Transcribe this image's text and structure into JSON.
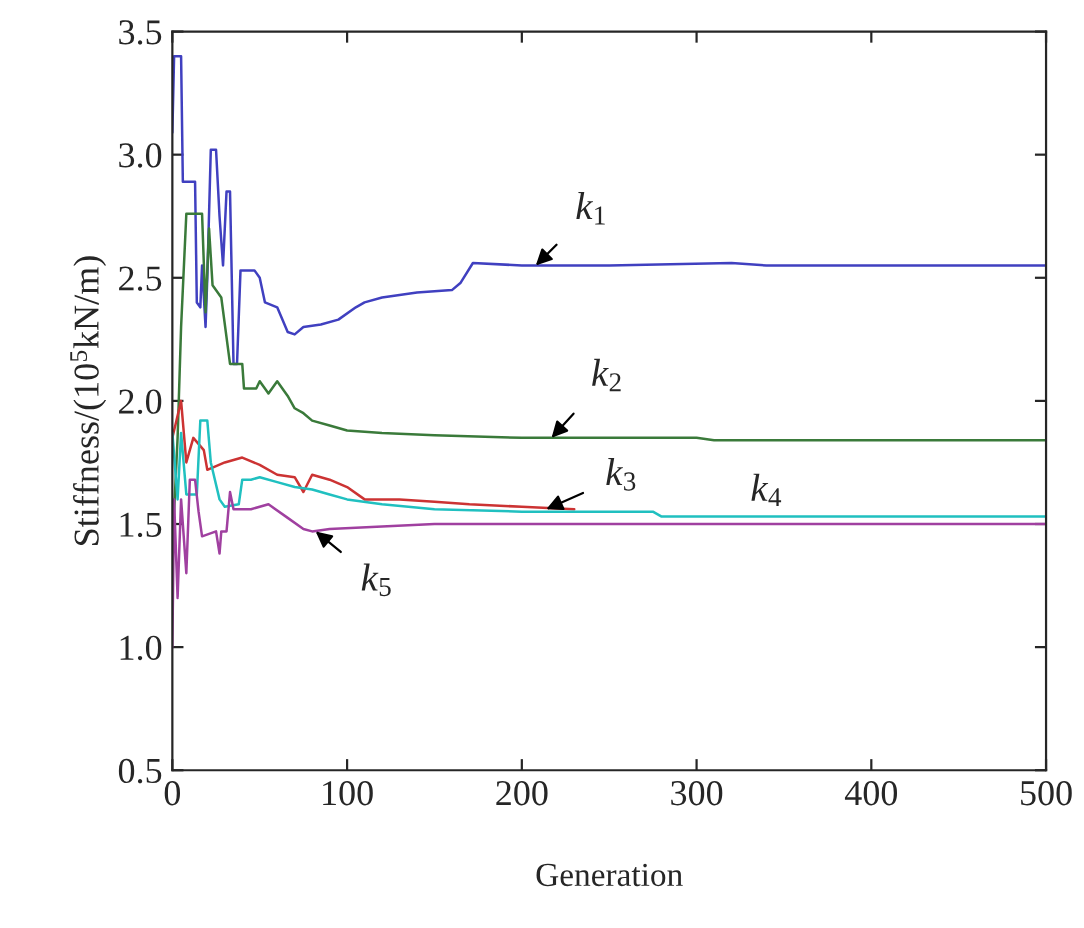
{
  "chart_data": {
    "type": "line",
    "xlabel": "Generation",
    "ylabel": "Stiffness/(10$^{5}$kN/m)",
    "xlim": [
      0,
      500
    ],
    "xticks": [
      0,
      100,
      200,
      300,
      400,
      500
    ],
    "ylim": [
      0.5,
      3.5
    ],
    "yticks": [
      0.5,
      {
        "value": 1,
        "label": "1.0"
      },
      1.5,
      {
        "value": 2,
        "label": "2.0"
      },
      2.5,
      {
        "value": 3,
        "label": "3.0"
      },
      3.5
    ],
    "grid": false,
    "legend": false,
    "marker": "none",
    "line_style": "solid",
    "series": [
      {
        "color": "#4040c0",
        "x": [
          0,
          1,
          5,
          6,
          13,
          14,
          16,
          17,
          19,
          20,
          22,
          25,
          27,
          29,
          31,
          33,
          35,
          37,
          39,
          47,
          50,
          53,
          60,
          66,
          70,
          75,
          85,
          95,
          105,
          110,
          120,
          140,
          160,
          165,
          172,
          200,
          250,
          320,
          340,
          500
        ],
        "values": [
          3.09,
          3.4,
          3.4,
          2.89,
          2.89,
          2.4,
          2.38,
          2.55,
          2.3,
          2.5,
          3.02,
          3.02,
          2.75,
          2.55,
          2.85,
          2.85,
          2.15,
          2.15,
          2.53,
          2.53,
          2.5,
          2.4,
          2.38,
          2.28,
          2.27,
          2.3,
          2.31,
          2.33,
          2.38,
          2.4,
          2.42,
          2.44,
          2.45,
          2.48,
          2.56,
          2.55,
          2.55,
          2.56,
          2.55,
          2.55
        ]
      },
      {
        "color": "#3a7a3a",
        "x": [
          0,
          3,
          5,
          8,
          17,
          19,
          21,
          23,
          28,
          33,
          40,
          41,
          48,
          50,
          55,
          60,
          66,
          70,
          75,
          80,
          90,
          100,
          120,
          150,
          200,
          300,
          310,
          500
        ],
        "values": [
          1.4,
          1.85,
          2.3,
          2.76,
          2.76,
          2.36,
          2.7,
          2.47,
          2.42,
          2.15,
          2.15,
          2.05,
          2.05,
          2.08,
          2.03,
          2.08,
          2.02,
          1.97,
          1.95,
          1.92,
          1.9,
          1.88,
          1.87,
          1.86,
          1.85,
          1.85,
          1.84,
          1.84
        ]
      },
      {
        "color": "#cc3333",
        "x": [
          0,
          5,
          8,
          12,
          18,
          20,
          30,
          40,
          50,
          60,
          70,
          75,
          80,
          90,
          100,
          110,
          130,
          150,
          170,
          200,
          230
        ],
        "values": [
          1.85,
          2.0,
          1.75,
          1.85,
          1.8,
          1.72,
          1.75,
          1.77,
          1.74,
          1.7,
          1.69,
          1.63,
          1.7,
          1.68,
          1.65,
          1.6,
          1.6,
          1.59,
          1.58,
          1.57,
          1.56
        ]
      },
      {
        "color": "#20c0c0",
        "x": [
          0,
          3,
          5,
          8,
          14,
          16,
          20,
          22,
          27,
          30,
          38,
          40,
          45,
          50,
          60,
          70,
          80,
          90,
          100,
          120,
          150,
          200,
          275,
          280,
          500
        ],
        "values": [
          1.87,
          1.6,
          1.87,
          1.62,
          1.62,
          1.92,
          1.92,
          1.75,
          1.6,
          1.57,
          1.58,
          1.68,
          1.68,
          1.69,
          1.67,
          1.65,
          1.64,
          1.62,
          1.6,
          1.58,
          1.56,
          1.55,
          1.55,
          1.53,
          1.53
        ]
      },
      {
        "color": "#a040a0",
        "x": [
          0,
          1,
          3,
          5,
          8,
          10,
          13,
          15,
          17,
          25,
          27,
          28,
          31,
          33,
          35,
          45,
          55,
          65,
          75,
          80,
          90,
          120,
          150,
          500
        ],
        "values": [
          1.0,
          1.6,
          1.2,
          1.6,
          1.3,
          1.68,
          1.68,
          1.55,
          1.45,
          1.47,
          1.38,
          1.47,
          1.47,
          1.63,
          1.56,
          1.56,
          1.58,
          1.53,
          1.48,
          1.47,
          1.48,
          1.49,
          1.5,
          1.5
        ]
      }
    ],
    "annotations": [
      {
        "text": "k$_{1}$",
        "x": 208,
        "y": 2.55
      },
      {
        "text": "k$_{2}$",
        "x": 217,
        "y": 1.85
      },
      {
        "text": "k$_{3}$",
        "x": 214,
        "y": 1.56
      },
      {
        "text": "k$_{4}$",
        "x": 340,
        "y": 1.53
      },
      {
        "text": "k$_{5}$",
        "x": 82,
        "y": 1.47
      }
    ]
  }
}
